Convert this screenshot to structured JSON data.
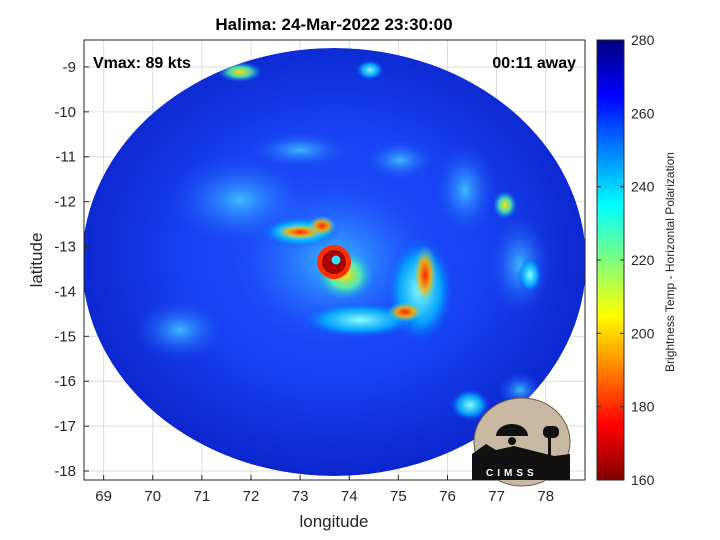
{
  "title": "Halima: 24-Mar-2022 23:30:00",
  "vmax_label": "Vmax: 89 kts",
  "time_away_label": "00:11 away",
  "xlabel": "longitude",
  "ylabel": "latitude",
  "logo_text": "CIMSS",
  "map": {
    "lon_range": [
      68.6,
      78.8
    ],
    "lat_range": [
      -18.2,
      -8.4
    ],
    "lon_ticks": [
      "69",
      "70",
      "71",
      "72",
      "73",
      "74",
      "75",
      "76",
      "77",
      "78"
    ],
    "lat_ticks": [
      "-9",
      "-10",
      "-11",
      "-12",
      "-13",
      "-14",
      "-15",
      "-16",
      "-17",
      "-18"
    ],
    "storm_center": {
      "lon": 73.7,
      "lat": -13.2
    },
    "grid": true
  },
  "colorbar": {
    "label": "Brightness Temp - Horizontal Polarization",
    "min": 160,
    "max": 280,
    "ticks": [
      "280",
      "260",
      "240",
      "220",
      "200",
      "180",
      "160"
    ],
    "colormap": "jet"
  },
  "colors": {
    "background": "#0a1fbd",
    "outside": "#ffffff",
    "eyewall": "#a50000",
    "rainband": "#ff3a00"
  }
}
